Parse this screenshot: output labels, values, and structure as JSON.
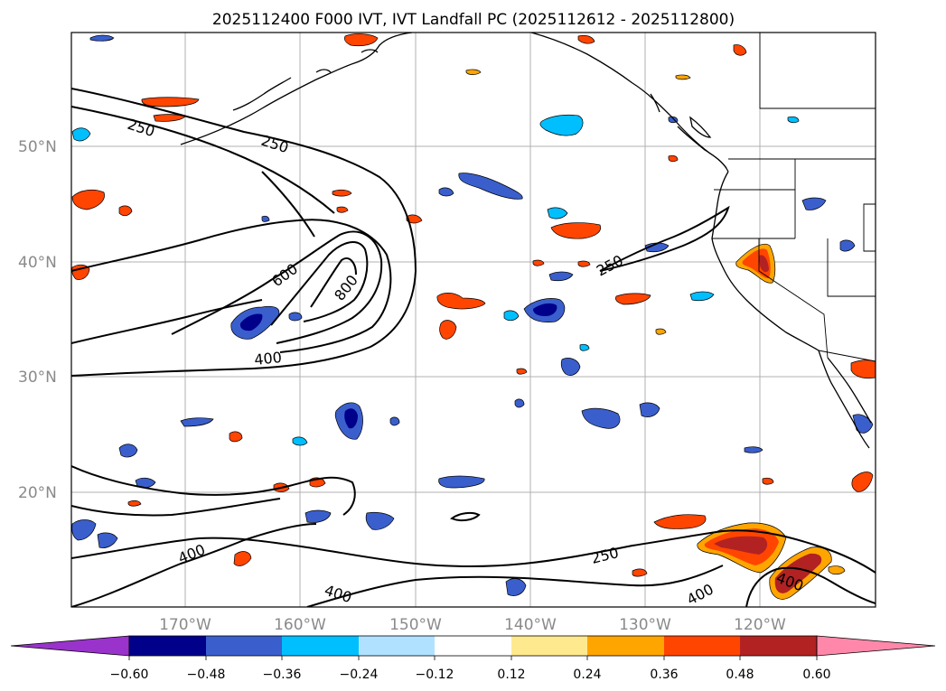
{
  "title": "2025112400 F000 IVT, IVT Landfall PC (2025112612 - 2025112800)",
  "lat_labels": [
    "50°N",
    "40°N",
    "30°N",
    "20°N"
  ],
  "lon_labels": [
    "170°W",
    "160°W",
    "150°W",
    "140°W",
    "130°W",
    "120°W"
  ],
  "contour_labels": [
    "250",
    "250",
    "600",
    "800",
    "400",
    "250",
    "250",
    "400",
    "400",
    "400",
    "400"
  ],
  "colorbar": {
    "ticks": [
      "−0.60",
      "−0.48",
      "−0.36",
      "−0.24",
      "−0.12",
      "0.12",
      "0.24",
      "0.36",
      "0.48",
      "0.60"
    ],
    "colors": [
      "#9933cc",
      "#00008b",
      "#3a5fcd",
      "#00bfff",
      "#b0e2ff",
      "#ffffff",
      "#ffe98f",
      "#ffa500",
      "#ff4500",
      "#b22222",
      "#ff88aa"
    ]
  },
  "palette": {
    "pos_light": "#ffe98f",
    "pos_mid": "#ffa500",
    "pos_strong": "#ff4500",
    "pos_max": "#b22222",
    "neg_light": "#b0e2ff",
    "neg_mid": "#00bfff",
    "neg_strong": "#3a5fcd",
    "neg_max": "#00008b"
  }
}
